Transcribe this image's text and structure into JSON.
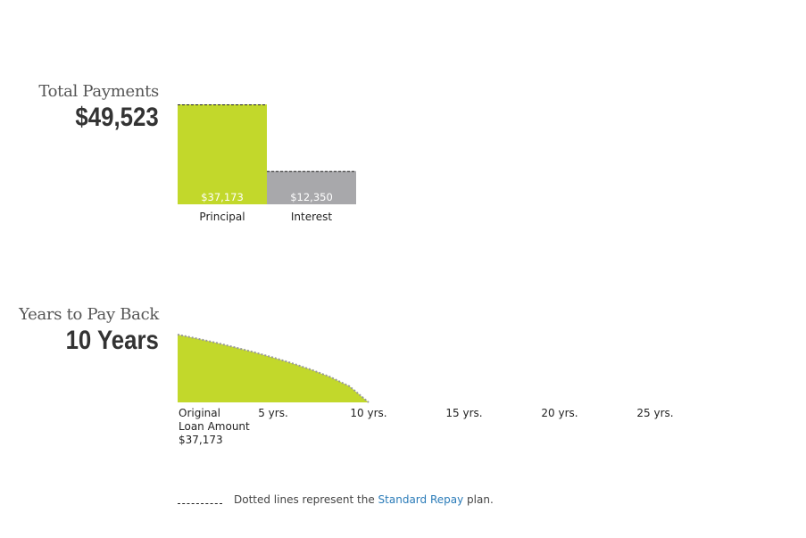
{
  "total_payments": {
    "title": "Total Payments",
    "value": "$49,523"
  },
  "years": {
    "title": "Years to Pay Back",
    "value": "10 Years"
  },
  "legend": {
    "prefix": "Dotted lines represent the",
    "link": "Standard Repay",
    "suffix": "plan."
  },
  "colors": {
    "principal": "#c2d82b",
    "interest": "#a8a8ab",
    "link": "#2a7bb8"
  },
  "chart_data": [
    {
      "type": "bar",
      "categories": [
        "Principal",
        "Interest"
      ],
      "values": [
        37173,
        12350
      ],
      "value_labels": [
        "$37,173",
        "$12,350"
      ],
      "reference_values": [
        37173,
        12350
      ],
      "ylim": [
        0,
        37173
      ]
    },
    {
      "type": "area",
      "x": [
        0,
        1,
        2,
        3,
        4,
        5,
        6,
        7,
        8,
        9,
        10
      ],
      "values": [
        37173,
        35000,
        32700,
        30200,
        27500,
        24600,
        21400,
        17900,
        13900,
        8800,
        0
      ],
      "xlim": [
        0,
        27.5
      ],
      "ylim": [
        0,
        37173
      ],
      "x_ticks": [
        {
          "x": 0,
          "lines": [
            "Original",
            "Loan Amount",
            "$37,173"
          ]
        },
        {
          "x": 5,
          "lines": [
            "5 yrs."
          ]
        },
        {
          "x": 10,
          "lines": [
            "10 yrs."
          ]
        },
        {
          "x": 15,
          "lines": [
            "15 yrs."
          ]
        },
        {
          "x": 20,
          "lines": [
            "20 yrs."
          ]
        },
        {
          "x": 25,
          "lines": [
            "25 yrs."
          ]
        }
      ]
    }
  ]
}
